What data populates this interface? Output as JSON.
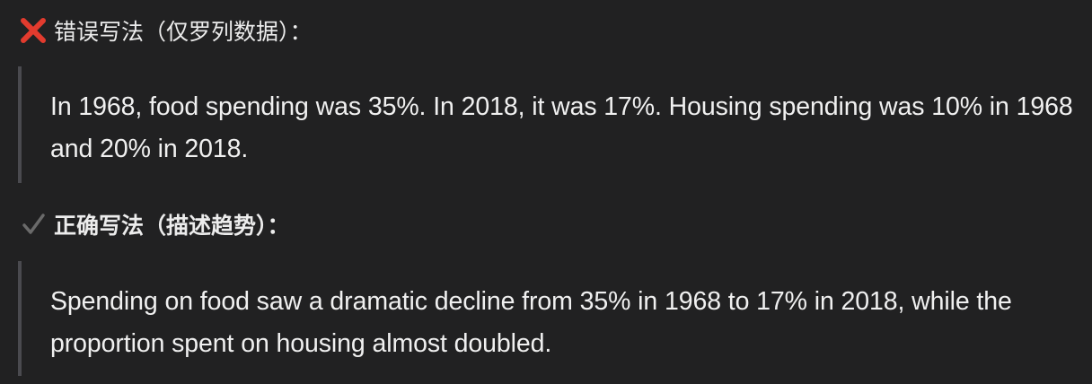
{
  "wrong_section": {
    "icon": "cross-mark-icon",
    "icon_color": "#e23b2e",
    "heading": "错误写法（仅罗列数据）：",
    "quote": "In 1968, food spending was 35%. In 2018, it was 17%. Housing spending was 10% in 1968 and 20% in 2018."
  },
  "right_section": {
    "icon": "check-mark-icon",
    "icon_color": "#6a6a6a",
    "heading": "正确写法（描述趋势）：",
    "quote": "Spending on food saw a dramatic decline from 35% in 1968 to 17% in 2018, while the proportion spent on housing almost doubled."
  },
  "colors": {
    "background": "#212122",
    "quote_border": "#4a4a4f",
    "text": "#f0f0f0"
  }
}
